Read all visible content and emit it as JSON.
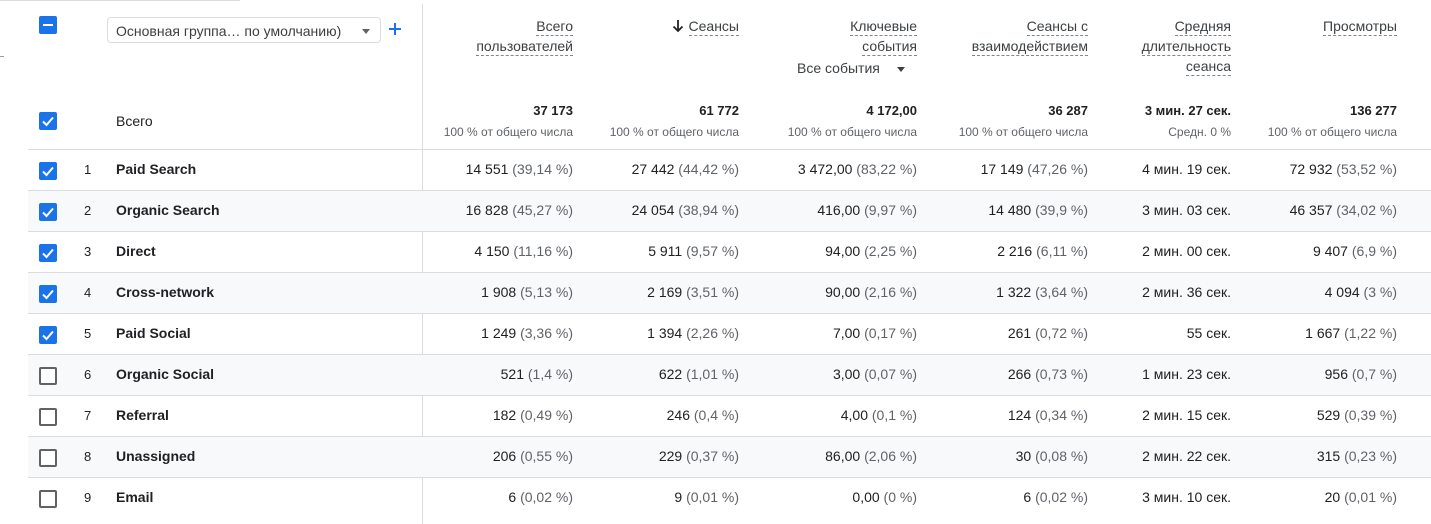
{
  "header": {
    "dimension_select": "Основная группа… по умолчанию)",
    "add_dimension": "+",
    "columns": [
      {
        "id": "users",
        "lines": [
          "Всего",
          "пользователей"
        ]
      },
      {
        "id": "sessions",
        "lines": [
          "Сеансы"
        ],
        "sorted": true
      },
      {
        "id": "key_events",
        "lines": [
          "Ключевые",
          "события"
        ]
      },
      {
        "id": "engaged",
        "lines": [
          "Сеансы с",
          "взаимодействием"
        ]
      },
      {
        "id": "duration",
        "lines": [
          "Средняя",
          "длительность",
          "сеанса"
        ]
      },
      {
        "id": "views",
        "lines": [
          "Просмотры"
        ]
      }
    ],
    "events_filter": "Все события"
  },
  "totals": {
    "label": "Всего",
    "values": [
      {
        "v": "37 173",
        "s": "100 % от общего числа"
      },
      {
        "v": "61 772",
        "s": "100 % от общего числа"
      },
      {
        "v": "4 172,00",
        "s": "100 % от общего числа"
      },
      {
        "v": "36 287",
        "s": "100 % от общего числа"
      },
      {
        "v": "3 мин. 27 сек.",
        "s": "Средн. 0 %"
      },
      {
        "v": "136 277",
        "s": "100 % от общего числа"
      }
    ]
  },
  "rows": [
    {
      "idx": "1",
      "name": "Paid Search",
      "checked": true,
      "cells": [
        [
          "14 551",
          "(39,14 %)"
        ],
        [
          "27 442",
          "(44,42 %)"
        ],
        [
          "3 472,00",
          "(83,22 %)"
        ],
        [
          "17 149",
          "(47,26 %)"
        ],
        [
          "4 мин. 19 сек.",
          ""
        ],
        [
          "72 932",
          "(53,52 %)"
        ]
      ]
    },
    {
      "idx": "2",
      "name": "Organic Search",
      "checked": true,
      "cells": [
        [
          "16 828",
          "(45,27 %)"
        ],
        [
          "24 054",
          "(38,94 %)"
        ],
        [
          "416,00",
          "(9,97 %)"
        ],
        [
          "14 480",
          "(39,9 %)"
        ],
        [
          "3 мин. 03 сек.",
          ""
        ],
        [
          "46 357",
          "(34,02 %)"
        ]
      ]
    },
    {
      "idx": "3",
      "name": "Direct",
      "checked": true,
      "cells": [
        [
          "4 150",
          "(11,16 %)"
        ],
        [
          "5 911",
          "(9,57 %)"
        ],
        [
          "94,00",
          "(2,25 %)"
        ],
        [
          "2 216",
          "(6,11 %)"
        ],
        [
          "2 мин. 00 сек.",
          ""
        ],
        [
          "9 407",
          "(6,9 %)"
        ]
      ]
    },
    {
      "idx": "4",
      "name": "Cross-network",
      "checked": true,
      "cells": [
        [
          "1 908",
          "(5,13 %)"
        ],
        [
          "2 169",
          "(3,51 %)"
        ],
        [
          "90,00",
          "(2,16 %)"
        ],
        [
          "1 322",
          "(3,64 %)"
        ],
        [
          "2 мин. 36 сек.",
          ""
        ],
        [
          "4 094",
          "(3 %)"
        ]
      ]
    },
    {
      "idx": "5",
      "name": "Paid Social",
      "checked": true,
      "cells": [
        [
          "1 249",
          "(3,36 %)"
        ],
        [
          "1 394",
          "(2,26 %)"
        ],
        [
          "7,00",
          "(0,17 %)"
        ],
        [
          "261",
          "(0,72 %)"
        ],
        [
          "55 сек.",
          ""
        ],
        [
          "1 667",
          "(1,22 %)"
        ]
      ]
    },
    {
      "idx": "6",
      "name": "Organic Social",
      "checked": false,
      "cells": [
        [
          "521",
          "(1,4 %)"
        ],
        [
          "622",
          "(1,01 %)"
        ],
        [
          "3,00",
          "(0,07 %)"
        ],
        [
          "266",
          "(0,73 %)"
        ],
        [
          "1 мин. 23 сек.",
          ""
        ],
        [
          "956",
          "(0,7 %)"
        ]
      ]
    },
    {
      "idx": "7",
      "name": "Referral",
      "checked": false,
      "cells": [
        [
          "182",
          "(0,49 %)"
        ],
        [
          "246",
          "(0,4 %)"
        ],
        [
          "4,00",
          "(0,1 %)"
        ],
        [
          "124",
          "(0,34 %)"
        ],
        [
          "2 мин. 15 сек.",
          ""
        ],
        [
          "529",
          "(0,39 %)"
        ]
      ]
    },
    {
      "idx": "8",
      "name": "Unassigned",
      "checked": false,
      "cells": [
        [
          "206",
          "(0,55 %)"
        ],
        [
          "229",
          "(0,37 %)"
        ],
        [
          "86,00",
          "(2,06 %)"
        ],
        [
          "30",
          "(0,08 %)"
        ],
        [
          "2 мин. 22 сек.",
          ""
        ],
        [
          "315",
          "(0,23 %)"
        ]
      ]
    },
    {
      "idx": "9",
      "name": "Email",
      "checked": false,
      "cells": [
        [
          "6",
          "(0,02 %)"
        ],
        [
          "9",
          "(0,01 %)"
        ],
        [
          "0,00",
          "(0 %)"
        ],
        [
          "6",
          "(0,02 %)"
        ],
        [
          "3 мин. 10 сек.",
          ""
        ],
        [
          "20",
          "(0,01 %)"
        ]
      ]
    }
  ],
  "colors": {
    "accent": "#1a73e8",
    "border": "#dadce0",
    "alt_row": "#f8f9fa"
  }
}
